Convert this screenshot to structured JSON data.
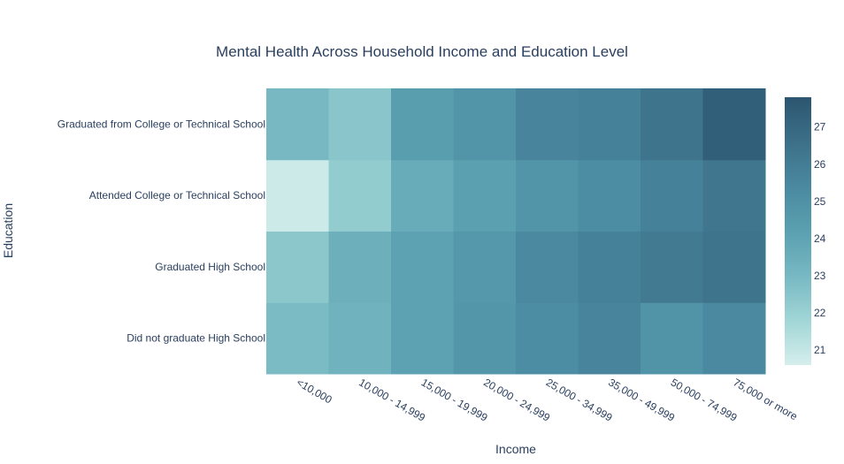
{
  "chart_data": {
    "type": "heatmap",
    "title": "Mental Health Across Household Income and Education Level",
    "xlabel": "Income",
    "ylabel": "Education",
    "x_categories": [
      "<10,000",
      "10,000 - 14,999",
      "15,000 - 19,999",
      "20,000 - 24,999",
      "25,000 - 34,999",
      "35,000 - 49,999",
      "50,000 - 74,999",
      "75,000 or more"
    ],
    "y_categories": [
      "Did not graduate High School",
      "Graduated High School",
      "Attended College or Technical School",
      "Graduated from College or Technical School"
    ],
    "z": [
      [
        22.9,
        23.3,
        24.1,
        24.7,
        25.2,
        25.6,
        24.9,
        25.4
      ],
      [
        22.4,
        23.4,
        24.1,
        24.6,
        25.4,
        25.8,
        26.1,
        26.4
      ],
      [
        20.8,
        22.2,
        23.6,
        24.2,
        24.8,
        25.2,
        25.8,
        26.3
      ],
      [
        23.0,
        22.5,
        24.3,
        24.8,
        25.6,
        25.8,
        26.4,
        27.4
      ]
    ],
    "zrange": [
      20.6,
      27.8
    ],
    "colorbar_ticks": [
      21,
      22,
      23,
      24,
      25,
      26,
      27
    ],
    "colorscale": [
      "#d5eeec",
      "#a1d6d6",
      "#77b8c2",
      "#5aa0b0",
      "#4a89a0",
      "#3c7088",
      "#2c5570"
    ],
    "grid": false,
    "colorbar_position": "right"
  }
}
